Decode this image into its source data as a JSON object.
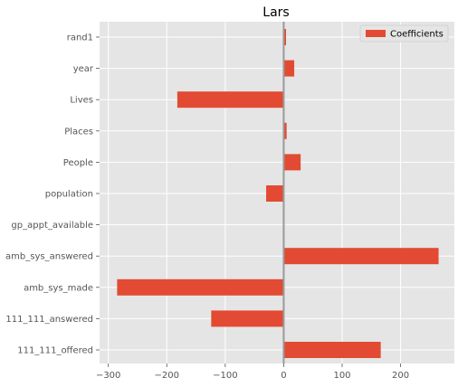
{
  "chart_data": {
    "type": "bar",
    "orientation": "horizontal",
    "title": "Lars",
    "categories": [
      "rand1",
      "year",
      "Lives",
      "Places",
      "People",
      "population",
      "gp_appt_available",
      "amb_sys_answered",
      "amb_sys_made",
      "111_111_answered",
      "111_111_offered"
    ],
    "series": [
      {
        "name": "Coefficients",
        "values": [
          4,
          18,
          -182,
          5,
          29,
          -30,
          0,
          265,
          -285,
          -124,
          166
        ]
      }
    ],
    "xlim": [
      -315,
      292
    ],
    "xticks": [
      -300,
      -200,
      -100,
      0,
      100,
      200
    ],
    "xtick_labels": [
      "−300",
      "−200",
      "−100",
      "0",
      "100",
      "200"
    ],
    "grid": true,
    "legend_position": "top-right",
    "colors": {
      "bar": "#E24A33",
      "plot_background": "#E5E5E5",
      "grid": "#FFFFFF",
      "zero_line": "#999999"
    }
  }
}
